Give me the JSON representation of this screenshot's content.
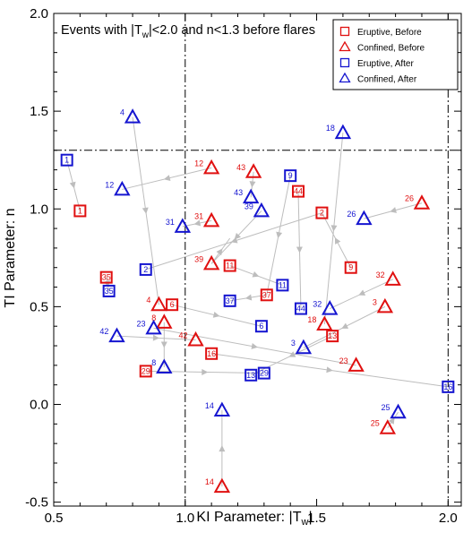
{
  "chart_data": {
    "type": "scatter",
    "title": "Events with |T",
    "title_sub": "w",
    "title_rest": "|<2.0 and n<1.3 before flares",
    "xlabel": "KI Parameter: |T",
    "xlabel_sub": "w",
    "xlabel_rest": "|",
    "ylabel": "TI Parameter: n",
    "xlim": [
      0.5,
      2.05
    ],
    "ylim": [
      -0.52,
      2.0
    ],
    "xticks": [
      "0.5",
      "1.0",
      "1.5",
      "2.0"
    ],
    "yticks": [
      "-0.5",
      "0.0",
      "0.5",
      "1.0",
      "1.5",
      "2.0"
    ],
    "threshold_x": [
      1.0,
      2.0
    ],
    "threshold_y": 1.3,
    "colors": {
      "eruptive": "#1515d0",
      "confined": "#e01010",
      "arrow": "#bdbdbd"
    },
    "legend": {
      "position": "top-right",
      "entries": [
        {
          "label": "Eruptive, Before",
          "marker": "square",
          "color": "#e01010"
        },
        {
          "label": "Confined, Before",
          "marker": "triangle",
          "color": "#e01010"
        },
        {
          "label": "Eruptive, After",
          "marker": "square",
          "color": "#1515d0"
        },
        {
          "label": "Confined, After",
          "marker": "triangle",
          "color": "#1515d0"
        }
      ]
    },
    "series": [
      {
        "name": "Eruptive, Before",
        "marker": "square",
        "color": "#e01010",
        "points": [
          {
            "label": "1",
            "x": 0.6,
            "y": 0.99
          },
          {
            "label": "2",
            "x": 1.52,
            "y": 0.98
          },
          {
            "label": "9",
            "x": 1.63,
            "y": 0.7
          },
          {
            "label": "11",
            "x": 1.17,
            "y": 0.71
          },
          {
            "label": "44",
            "x": 1.43,
            "y": 1.09
          },
          {
            "label": "37",
            "x": 1.31,
            "y": 0.56
          },
          {
            "label": "35",
            "x": 0.7,
            "y": 0.65
          },
          {
            "label": "6",
            "x": 0.95,
            "y": 0.51
          },
          {
            "label": "13",
            "x": 1.56,
            "y": 0.35
          },
          {
            "label": "16",
            "x": 1.1,
            "y": 0.26
          },
          {
            "label": "29",
            "x": 0.85,
            "y": 0.17
          }
        ]
      },
      {
        "name": "Confined, Before",
        "marker": "triangle",
        "color": "#e01010",
        "points": [
          {
            "label": "12",
            "x": 1.1,
            "y": 1.21
          },
          {
            "label": "43",
            "x": 1.26,
            "y": 1.19
          },
          {
            "label": "26",
            "x": 1.9,
            "y": 1.03
          },
          {
            "label": "31",
            "x": 1.1,
            "y": 0.94
          },
          {
            "label": "39",
            "x": 1.1,
            "y": 0.72
          },
          {
            "label": "32",
            "x": 1.79,
            "y": 0.64
          },
          {
            "label": "4",
            "x": 0.9,
            "y": 0.51
          },
          {
            "label": "3",
            "x": 1.76,
            "y": 0.5
          },
          {
            "label": "8",
            "x": 0.92,
            "y": 0.42
          },
          {
            "label": "18",
            "x": 1.53,
            "y": 0.41
          },
          {
            "label": "42",
            "x": 1.04,
            "y": 0.33
          },
          {
            "label": "23",
            "x": 1.65,
            "y": 0.2
          },
          {
            "label": "25",
            "x": 1.77,
            "y": -0.12
          },
          {
            "label": "14",
            "x": 1.14,
            "y": -0.42
          }
        ]
      },
      {
        "name": "Eruptive, After",
        "marker": "square",
        "color": "#1515d0",
        "points": [
          {
            "label": "1",
            "x": 0.55,
            "y": 1.25
          },
          {
            "label": "9",
            "x": 1.4,
            "y": 1.17
          },
          {
            "label": "2",
            "x": 0.85,
            "y": 0.69
          },
          {
            "label": "11",
            "x": 1.37,
            "y": 0.61
          },
          {
            "label": "35",
            "x": 0.71,
            "y": 0.58
          },
          {
            "label": "37",
            "x": 1.17,
            "y": 0.53
          },
          {
            "label": "44",
            "x": 1.44,
            "y": 0.49
          },
          {
            "label": "6",
            "x": 1.29,
            "y": 0.4
          },
          {
            "label": "13",
            "x": 1.25,
            "y": 0.15
          },
          {
            "label": "29",
            "x": 1.3,
            "y": 0.16
          },
          {
            "label": "16",
            "x": 2.0,
            "y": 0.09
          }
        ]
      },
      {
        "name": "Confined, After",
        "marker": "triangle",
        "color": "#1515d0",
        "points": [
          {
            "label": "4",
            "x": 0.8,
            "y": 1.47
          },
          {
            "label": "18",
            "x": 1.6,
            "y": 1.39
          },
          {
            "label": "12",
            "x": 0.76,
            "y": 1.1
          },
          {
            "label": "43",
            "x": 1.25,
            "y": 1.06
          },
          {
            "label": "39",
            "x": 1.29,
            "y": 0.99
          },
          {
            "label": "26",
            "x": 1.68,
            "y": 0.95
          },
          {
            "label": "31",
            "x": 0.99,
            "y": 0.91
          },
          {
            "label": "32",
            "x": 1.55,
            "y": 0.49
          },
          {
            "label": "23",
            "x": 0.88,
            "y": 0.39
          },
          {
            "label": "42",
            "x": 0.74,
            "y": 0.35
          },
          {
            "label": "3",
            "x": 1.45,
            "y": 0.29
          },
          {
            "label": "8",
            "x": 0.92,
            "y": 0.19
          },
          {
            "label": "14",
            "x": 1.14,
            "y": -0.03
          },
          {
            "label": "25",
            "x": 1.81,
            "y": -0.04
          }
        ]
      }
    ],
    "arrows": [
      {
        "from": [
          1.1,
          1.21
        ],
        "to": [
          0.76,
          1.1
        ]
      },
      {
        "from": [
          0.55,
          1.25
        ],
        "to": [
          0.6,
          0.99
        ]
      },
      {
        "from": [
          0.8,
          1.47
        ],
        "to": [
          0.9,
          0.51
        ]
      },
      {
        "from": [
          1.52,
          0.98
        ],
        "to": [
          0.85,
          0.69
        ]
      },
      {
        "from": [
          1.43,
          1.09
        ],
        "to": [
          1.44,
          0.49
        ]
      },
      {
        "from": [
          1.26,
          1.19
        ],
        "to": [
          1.25,
          1.06
        ]
      },
      {
        "from": [
          1.29,
          0.99
        ],
        "to": [
          1.1,
          0.72
        ]
      },
      {
        "from": [
          1.9,
          1.03
        ],
        "to": [
          1.68,
          0.95
        ]
      },
      {
        "from": [
          1.1,
          0.94
        ],
        "to": [
          0.99,
          0.91
        ]
      },
      {
        "from": [
          1.4,
          1.17
        ],
        "to": [
          1.31,
          0.56
        ]
      },
      {
        "from": [
          1.6,
          1.39
        ],
        "to": [
          1.53,
          0.41
        ]
      },
      {
        "from": [
          1.63,
          0.7
        ],
        "to": [
          1.52,
          0.98
        ]
      },
      {
        "from": [
          1.17,
          0.71
        ],
        "to": [
          1.37,
          0.61
        ]
      },
      {
        "from": [
          1.79,
          0.64
        ],
        "to": [
          1.55,
          0.49
        ]
      },
      {
        "from": [
          0.95,
          0.51
        ],
        "to": [
          1.29,
          0.4
        ]
      },
      {
        "from": [
          1.31,
          0.56
        ],
        "to": [
          1.17,
          0.53
        ]
      },
      {
        "from": [
          0.7,
          0.65
        ],
        "to": [
          0.71,
          0.58
        ]
      },
      {
        "from": [
          1.76,
          0.5
        ],
        "to": [
          1.45,
          0.29
        ]
      },
      {
        "from": [
          0.92,
          0.42
        ],
        "to": [
          0.92,
          0.19
        ]
      },
      {
        "from": [
          0.74,
          0.35
        ],
        "to": [
          1.04,
          0.33
        ]
      },
      {
        "from": [
          0.88,
          0.39
        ],
        "to": [
          1.65,
          0.2
        ]
      },
      {
        "from": [
          1.56,
          0.35
        ],
        "to": [
          1.25,
          0.15
        ]
      },
      {
        "from": [
          1.1,
          0.26
        ],
        "to": [
          2.0,
          0.09
        ]
      },
      {
        "from": [
          0.85,
          0.17
        ],
        "to": [
          1.3,
          0.16
        ]
      },
      {
        "from": [
          1.77,
          -0.12
        ],
        "to": [
          1.81,
          -0.04
        ]
      },
      {
        "from": [
          1.14,
          -0.42
        ],
        "to": [
          1.14,
          -0.03
        ]
      },
      {
        "from": [
          1.1,
          0.72
        ],
        "to": [
          1.17,
          0.85
        ]
      }
    ]
  }
}
